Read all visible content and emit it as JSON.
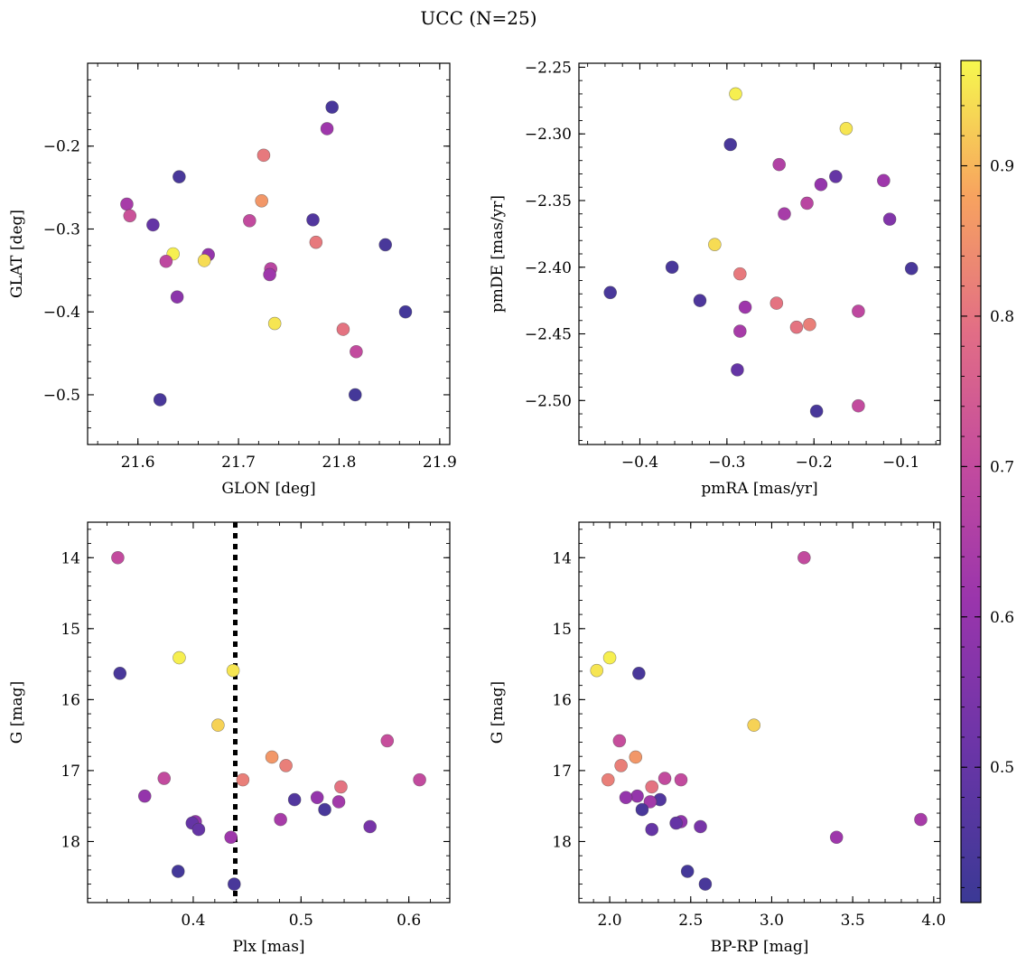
{
  "figure": {
    "title": "UCC (N=25)"
  },
  "colorbar": {
    "colormap": "plasma",
    "range": [
      0.41,
      0.97
    ],
    "ticks": [
      0.5,
      0.6,
      0.7,
      0.8,
      0.9
    ],
    "tick_labels": [
      "0.5",
      "0.6",
      "0.7",
      "0.8",
      "0.9"
    ]
  },
  "chart_data": [
    {
      "type": "scatter",
      "xlabel": "GLON [deg]",
      "ylabel": "GLAT [deg]",
      "xlim": [
        21.55,
        21.91
      ],
      "ylim": [
        -0.56,
        -0.1
      ],
      "y_inverted": false,
      "xticks": [
        21.6,
        21.7,
        21.8,
        21.9
      ],
      "xtick_labels": [
        "21.6",
        "21.7",
        "21.8",
        "21.9"
      ],
      "yticks": [
        -0.2,
        -0.3,
        -0.4,
        -0.5
      ],
      "ytick_labels": [
        "−0.2",
        "−0.3",
        "−0.4",
        "−0.5"
      ],
      "points": [
        {
          "x": 21.793,
          "y": -0.153,
          "p": 0.44
        },
        {
          "x": 21.788,
          "y": -0.179,
          "p": 0.62
        },
        {
          "x": 21.725,
          "y": -0.211,
          "p": 0.81
        },
        {
          "x": 21.641,
          "y": -0.237,
          "p": 0.44
        },
        {
          "x": 21.723,
          "y": -0.266,
          "p": 0.86
        },
        {
          "x": 21.589,
          "y": -0.27,
          "p": 0.64
        },
        {
          "x": 21.592,
          "y": -0.284,
          "p": 0.72
        },
        {
          "x": 21.711,
          "y": -0.29,
          "p": 0.7
        },
        {
          "x": 21.774,
          "y": -0.289,
          "p": 0.46
        },
        {
          "x": 21.615,
          "y": -0.295,
          "p": 0.5
        },
        {
          "x": 21.777,
          "y": -0.316,
          "p": 0.81
        },
        {
          "x": 21.846,
          "y": -0.319,
          "p": 0.44
        },
        {
          "x": 21.67,
          "y": -0.331,
          "p": 0.6
        },
        {
          "x": 21.635,
          "y": -0.33,
          "p": 0.96
        },
        {
          "x": 21.628,
          "y": -0.339,
          "p": 0.69
        },
        {
          "x": 21.666,
          "y": -0.338,
          "p": 0.94
        },
        {
          "x": 21.732,
          "y": -0.348,
          "p": 0.68
        },
        {
          "x": 21.731,
          "y": -0.355,
          "p": 0.62
        },
        {
          "x": 21.639,
          "y": -0.382,
          "p": 0.58
        },
        {
          "x": 21.866,
          "y": -0.4,
          "p": 0.43
        },
        {
          "x": 21.736,
          "y": -0.414,
          "p": 0.95
        },
        {
          "x": 21.804,
          "y": -0.421,
          "p": 0.8
        },
        {
          "x": 21.817,
          "y": -0.448,
          "p": 0.7
        },
        {
          "x": 21.816,
          "y": -0.5,
          "p": 0.43
        },
        {
          "x": 21.622,
          "y": -0.506,
          "p": 0.44
        }
      ]
    },
    {
      "type": "scatter",
      "xlabel": "pmRA [mas/yr]",
      "ylabel": "pmDE [mas/yr]",
      "xlim": [
        -0.47,
        -0.055
      ],
      "ylim": [
        -2.533,
        -2.247
      ],
      "y_inverted": false,
      "xticks": [
        -0.4,
        -0.3,
        -0.2,
        -0.1
      ],
      "xtick_labels": [
        "−0.4",
        "−0.3",
        "−0.2",
        "−0.1"
      ],
      "yticks": [
        -2.25,
        -2.3,
        -2.35,
        -2.4,
        -2.45,
        -2.5
      ],
      "ytick_labels": [
        "−2.25",
        "−2.30",
        "−2.35",
        "−2.40",
        "−2.45",
        "−2.50"
      ],
      "points": [
        {
          "x": -0.29,
          "y": -2.27,
          "p": 0.96
        },
        {
          "x": -0.163,
          "y": -2.296,
          "p": 0.95
        },
        {
          "x": -0.296,
          "y": -2.308,
          "p": 0.44
        },
        {
          "x": -0.24,
          "y": -2.323,
          "p": 0.66
        },
        {
          "x": -0.175,
          "y": -2.332,
          "p": 0.5
        },
        {
          "x": -0.12,
          "y": -2.335,
          "p": 0.62
        },
        {
          "x": -0.192,
          "y": -2.338,
          "p": 0.6
        },
        {
          "x": -0.208,
          "y": -2.352,
          "p": 0.68
        },
        {
          "x": -0.234,
          "y": -2.36,
          "p": 0.64
        },
        {
          "x": -0.113,
          "y": -2.364,
          "p": 0.56
        },
        {
          "x": -0.314,
          "y": -2.383,
          "p": 0.94
        },
        {
          "x": -0.363,
          "y": -2.4,
          "p": 0.44
        },
        {
          "x": -0.088,
          "y": -2.401,
          "p": 0.44
        },
        {
          "x": -0.285,
          "y": -2.405,
          "p": 0.81
        },
        {
          "x": -0.434,
          "y": -2.419,
          "p": 0.44
        },
        {
          "x": -0.331,
          "y": -2.425,
          "p": 0.45
        },
        {
          "x": -0.243,
          "y": -2.427,
          "p": 0.8
        },
        {
          "x": -0.279,
          "y": -2.43,
          "p": 0.62
        },
        {
          "x": -0.149,
          "y": -2.433,
          "p": 0.69
        },
        {
          "x": -0.205,
          "y": -2.443,
          "p": 0.82
        },
        {
          "x": -0.22,
          "y": -2.445,
          "p": 0.8
        },
        {
          "x": -0.285,
          "y": -2.448,
          "p": 0.64
        },
        {
          "x": -0.288,
          "y": -2.477,
          "p": 0.5
        },
        {
          "x": -0.149,
          "y": -2.504,
          "p": 0.7
        },
        {
          "x": -0.197,
          "y": -2.508,
          "p": 0.44
        }
      ]
    },
    {
      "type": "scatter",
      "xlabel": "Plx [mas]",
      "ylabel": "G [mag]",
      "xlim": [
        0.302,
        0.638
      ],
      "ylim": [
        18.86,
        13.5
      ],
      "y_inverted": true,
      "xticks": [
        0.4,
        0.5,
        0.6
      ],
      "xtick_labels": [
        "0.4",
        "0.5",
        "0.6"
      ],
      "yticks": [
        14,
        15,
        16,
        17,
        18
      ],
      "ytick_labels": [
        "14",
        "15",
        "16",
        "17",
        "18"
      ],
      "vline": {
        "x": 0.439,
        "style": "dotted"
      },
      "points": [
        {
          "x": 0.33,
          "y": 14.0,
          "p": 0.7
        },
        {
          "x": 0.387,
          "y": 15.41,
          "p": 0.96
        },
        {
          "x": 0.437,
          "y": 15.59,
          "p": 0.95
        },
        {
          "x": 0.332,
          "y": 15.63,
          "p": 0.44
        },
        {
          "x": 0.423,
          "y": 16.36,
          "p": 0.93
        },
        {
          "x": 0.58,
          "y": 16.58,
          "p": 0.71
        },
        {
          "x": 0.473,
          "y": 16.81,
          "p": 0.86
        },
        {
          "x": 0.486,
          "y": 16.93,
          "p": 0.82
        },
        {
          "x": 0.373,
          "y": 17.11,
          "p": 0.7
        },
        {
          "x": 0.446,
          "y": 17.13,
          "p": 0.82
        },
        {
          "x": 0.61,
          "y": 17.13,
          "p": 0.7
        },
        {
          "x": 0.537,
          "y": 17.23,
          "p": 0.8
        },
        {
          "x": 0.355,
          "y": 17.36,
          "p": 0.6
        },
        {
          "x": 0.515,
          "y": 17.38,
          "p": 0.6
        },
        {
          "x": 0.494,
          "y": 17.41,
          "p": 0.46
        },
        {
          "x": 0.535,
          "y": 17.44,
          "p": 0.63
        },
        {
          "x": 0.522,
          "y": 17.55,
          "p": 0.44
        },
        {
          "x": 0.481,
          "y": 17.69,
          "p": 0.64
        },
        {
          "x": 0.402,
          "y": 17.72,
          "p": 0.59
        },
        {
          "x": 0.399,
          "y": 17.74,
          "p": 0.5
        },
        {
          "x": 0.564,
          "y": 17.79,
          "p": 0.54
        },
        {
          "x": 0.405,
          "y": 17.83,
          "p": 0.5
        },
        {
          "x": 0.435,
          "y": 17.94,
          "p": 0.62
        },
        {
          "x": 0.386,
          "y": 18.42,
          "p": 0.43
        },
        {
          "x": 0.438,
          "y": 18.6,
          "p": 0.44
        }
      ]
    },
    {
      "type": "scatter",
      "xlabel": "BP-RP [mag]",
      "ylabel": "G [mag]",
      "xlim": [
        1.81,
        4.04
      ],
      "ylim": [
        18.86,
        13.5
      ],
      "y_inverted": true,
      "xticks": [
        2.0,
        2.5,
        3.0,
        3.5,
        4.0
      ],
      "xtick_labels": [
        "2.0",
        "2.5",
        "3.0",
        "3.5",
        "4.0"
      ],
      "yticks": [
        14,
        15,
        16,
        17,
        18
      ],
      "ytick_labels": [
        "14",
        "15",
        "16",
        "17",
        "18"
      ],
      "points": [
        {
          "x": 3.2,
          "y": 14.0,
          "p": 0.7
        },
        {
          "x": 2.0,
          "y": 15.41,
          "p": 0.96
        },
        {
          "x": 1.92,
          "y": 15.59,
          "p": 0.95
        },
        {
          "x": 2.18,
          "y": 15.63,
          "p": 0.44
        },
        {
          "x": 2.89,
          "y": 16.36,
          "p": 0.93
        },
        {
          "x": 2.06,
          "y": 16.58,
          "p": 0.71
        },
        {
          "x": 2.16,
          "y": 16.81,
          "p": 0.86
        },
        {
          "x": 2.07,
          "y": 16.93,
          "p": 0.82
        },
        {
          "x": 2.34,
          "y": 17.11,
          "p": 0.7
        },
        {
          "x": 1.99,
          "y": 17.13,
          "p": 0.82
        },
        {
          "x": 2.44,
          "y": 17.13,
          "p": 0.7
        },
        {
          "x": 2.26,
          "y": 17.23,
          "p": 0.8
        },
        {
          "x": 2.17,
          "y": 17.36,
          "p": 0.6
        },
        {
          "x": 2.1,
          "y": 17.38,
          "p": 0.6
        },
        {
          "x": 2.31,
          "y": 17.41,
          "p": 0.46
        },
        {
          "x": 2.25,
          "y": 17.44,
          "p": 0.63
        },
        {
          "x": 2.2,
          "y": 17.55,
          "p": 0.44
        },
        {
          "x": 3.92,
          "y": 17.69,
          "p": 0.64
        },
        {
          "x": 2.44,
          "y": 17.72,
          "p": 0.59
        },
        {
          "x": 2.41,
          "y": 17.74,
          "p": 0.5
        },
        {
          "x": 2.56,
          "y": 17.79,
          "p": 0.54
        },
        {
          "x": 2.26,
          "y": 17.83,
          "p": 0.5
        },
        {
          "x": 3.4,
          "y": 17.94,
          "p": 0.62
        },
        {
          "x": 2.48,
          "y": 18.42,
          "p": 0.43
        },
        {
          "x": 2.59,
          "y": 18.6,
          "p": 0.44
        }
      ]
    }
  ]
}
